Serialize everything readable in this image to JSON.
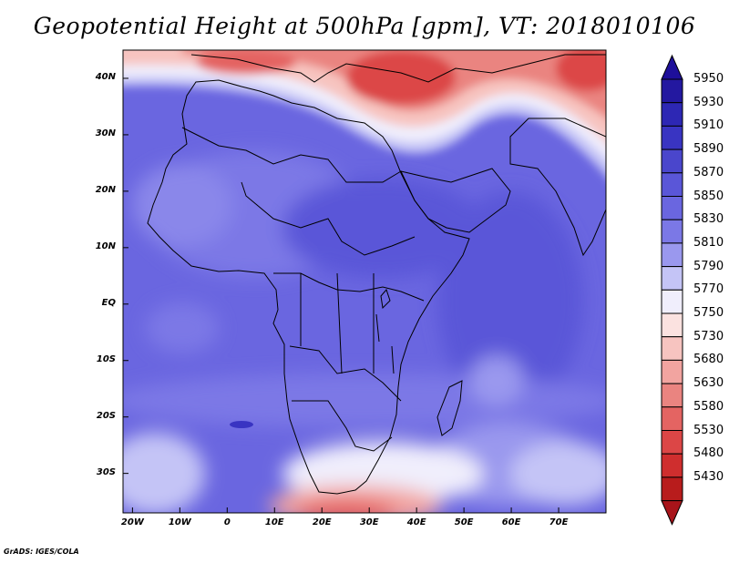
{
  "title": "Geopotential Height at 500hPa [gpm], VT: 2018010106",
  "credit": "GrADS: IGES/COLA",
  "lat_ticks": [
    {
      "label": "40N",
      "lat": 40
    },
    {
      "label": "30N",
      "lat": 30
    },
    {
      "label": "20N",
      "lat": 20
    },
    {
      "label": "10N",
      "lat": 10
    },
    {
      "label": "EQ",
      "lat": 0
    },
    {
      "label": "10S",
      "lat": -10
    },
    {
      "label": "20S",
      "lat": -20
    },
    {
      "label": "30S",
      "lat": -30
    }
  ],
  "lon_ticks": [
    {
      "label": "20W",
      "lon": -20
    },
    {
      "label": "10W",
      "lon": -10
    },
    {
      "label": "0",
      "lon": 0
    },
    {
      "label": "10E",
      "lon": 10
    },
    {
      "label": "20E",
      "lon": 20
    },
    {
      "label": "30E",
      "lon": 30
    },
    {
      "label": "40E",
      "lon": 40
    },
    {
      "label": "50E",
      "lon": 50
    },
    {
      "label": "60E",
      "lon": 60
    },
    {
      "label": "70E",
      "lon": 70
    }
  ],
  "map_extent": {
    "lon": [
      -22,
      80
    ],
    "lat": [
      -37,
      45
    ]
  },
  "colorbar": {
    "levels": [
      {
        "label": "5950",
        "color": "#2318a0"
      },
      {
        "label": "5930",
        "color": "#2d27b4"
      },
      {
        "label": "5910",
        "color": "#3934c2"
      },
      {
        "label": "5890",
        "color": "#4a46cc"
      },
      {
        "label": "5870",
        "color": "#5a56d8"
      },
      {
        "label": "5850",
        "color": "#6a66e0"
      },
      {
        "label": "5830",
        "color": "#7b78e6"
      },
      {
        "label": "5810",
        "color": "#9a98ee"
      },
      {
        "label": "5790",
        "color": "#c4c4f6"
      },
      {
        "label": "5770",
        "color": "#f0eefc"
      },
      {
        "label": "5750",
        "color": "#fbe2e0"
      },
      {
        "label": "5730",
        "color": "#f7c4c0"
      },
      {
        "label": "5680",
        "color": "#f2a4a0"
      },
      {
        "label": "5630",
        "color": "#ea8480"
      },
      {
        "label": "5580",
        "color": "#e46462"
      },
      {
        "label": "5530",
        "color": "#dc4646"
      },
      {
        "label": "5480",
        "color": "#cf2e2e"
      },
      {
        "label": "5430",
        "color": "#b81c1c"
      }
    ],
    "top_color": "#1e0f9a",
    "bottom_color": "#a8141a"
  }
}
